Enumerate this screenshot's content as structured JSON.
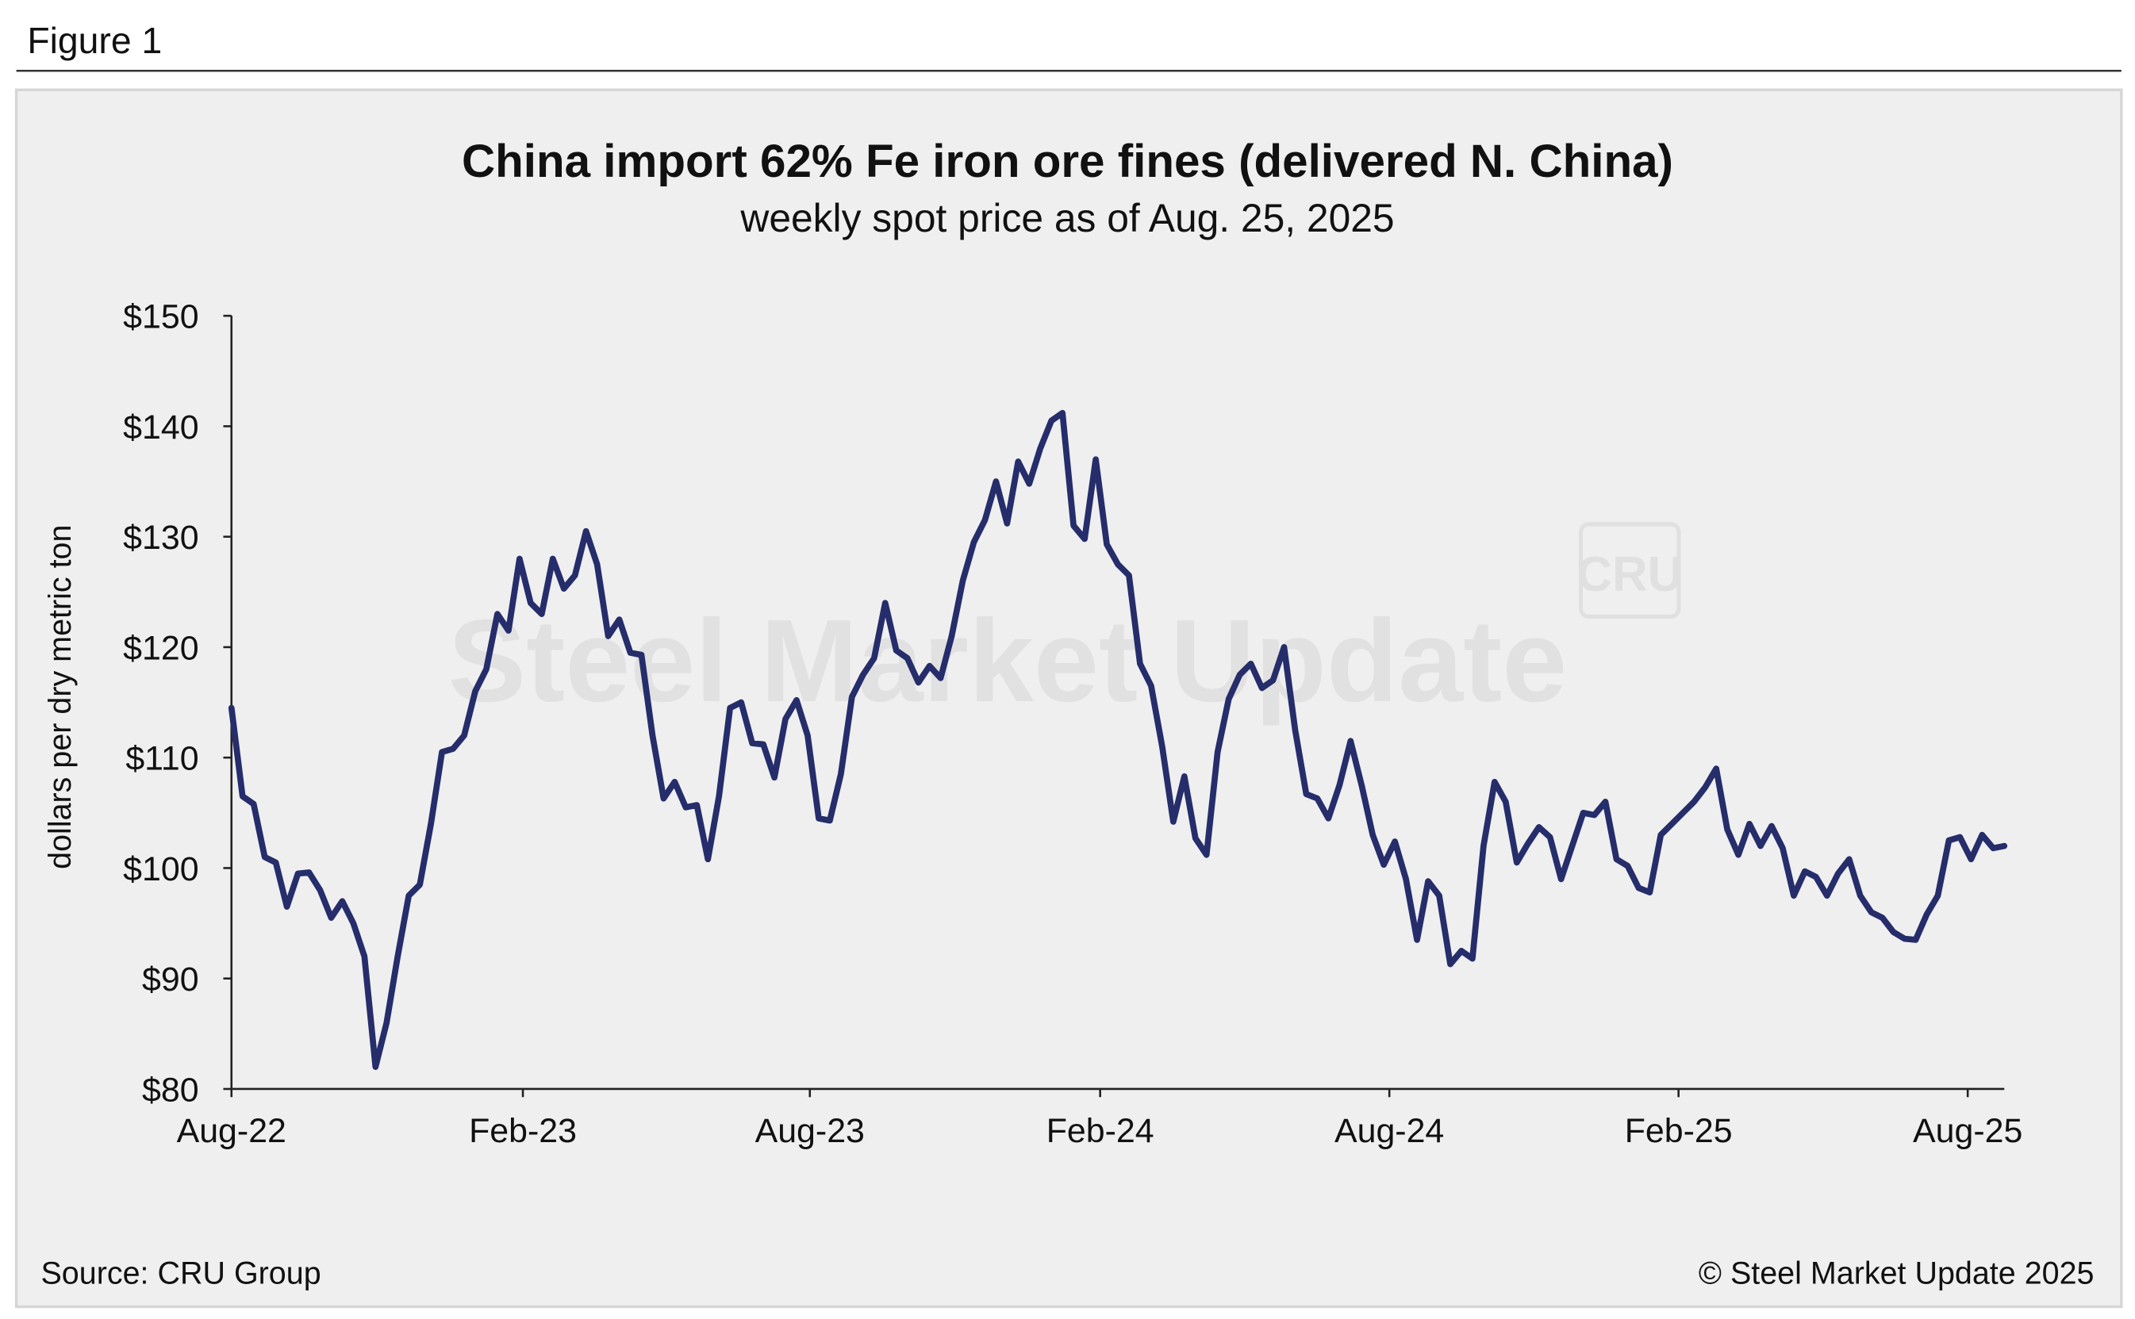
{
  "figure_label": "Figure 1",
  "source": "Source: CRU Group",
  "copyright": "© Steel Market Update 2025",
  "watermark": "Steel Market Update",
  "logo": "CRU",
  "chart_data": {
    "type": "line",
    "title": "China import 62% Fe iron ore fines (delivered N. China)",
    "subtitle": "weekly spot price as of Aug. 25, 2025",
    "y_label": "dollars per dry metric ton",
    "x": [
      0,
      1,
      2,
      3,
      4,
      5,
      6,
      7,
      8,
      9,
      10,
      11,
      12,
      13,
      14,
      15,
      16,
      17,
      18,
      19,
      20,
      21,
      22,
      23,
      24,
      25,
      26,
      27,
      28,
      29,
      30,
      31,
      32,
      33,
      34,
      35,
      36,
      37,
      38,
      39,
      40,
      41,
      42,
      43,
      44,
      45,
      46,
      47,
      48,
      49,
      50,
      51,
      52,
      53,
      54,
      55,
      56,
      57,
      58,
      59,
      60,
      61,
      62,
      63,
      64,
      65,
      66,
      67,
      68,
      69,
      70,
      71,
      72,
      73,
      74,
      75,
      76,
      77,
      78,
      79,
      80,
      81,
      82,
      83,
      84,
      85,
      86,
      87,
      88,
      89,
      90,
      91,
      92,
      93,
      94,
      95,
      96,
      97,
      98,
      99,
      100,
      101,
      102,
      103,
      104,
      105,
      106,
      107,
      108,
      109,
      110,
      111,
      112,
      113,
      114,
      115,
      116,
      117,
      118,
      119,
      120,
      121,
      122,
      123,
      124,
      125,
      126,
      127,
      128,
      129,
      130,
      131,
      132,
      133,
      134,
      135,
      136,
      137,
      138,
      139,
      140,
      141,
      142,
      143,
      144,
      145,
      146,
      147,
      148,
      149,
      150,
      151,
      152,
      153,
      154,
      155,
      156,
      157,
      158,
      159,
      160
    ],
    "series": [
      {
        "name": "62% Fe iron ore fines",
        "color": "#262d6b",
        "values": [
          114.5,
          106.5,
          105.8,
          101,
          100.5,
          96.5,
          99.5,
          99.6,
          98,
          95.5,
          97,
          95,
          92,
          82,
          86,
          92,
          97.5,
          98.5,
          104,
          110.5,
          110.8,
          112,
          116,
          118,
          123,
          121.5,
          128,
          124,
          123,
          128,
          125.3,
          126.5,
          130.5,
          127.5,
          121,
          122.5,
          119.5,
          119.3,
          112,
          106.3,
          107.8,
          105.5,
          105.7,
          100.8,
          106.5,
          114.5,
          115,
          111.3,
          111.2,
          108.2,
          113.5,
          115.2,
          112,
          104.5,
          104.3,
          108.5,
          115.5,
          117.5,
          119,
          124,
          119.7,
          119,
          116.8,
          118.3,
          117.2,
          121,
          126,
          129.5,
          131.5,
          135,
          131.2,
          136.8,
          134.8,
          138,
          140.5,
          141.2,
          131,
          129.8,
          137,
          129.3,
          127.5,
          126.5,
          118.5,
          116.5,
          111,
          104.2,
          108.3,
          102.7,
          101.2,
          110.5,
          115.3,
          117.5,
          118.5,
          116.3,
          117,
          120,
          112.5,
          106.7,
          106.3,
          104.5,
          107.5,
          111.5,
          107.5,
          103,
          100.3,
          102.4,
          99,
          93.5,
          98.8,
          97.5,
          91.3,
          92.5,
          91.8,
          102,
          107.8,
          106,
          100.5,
          102.2,
          103.7,
          102.8,
          99,
          102,
          105,
          104.8,
          106,
          100.8,
          100.2,
          98.2,
          97.8,
          103,
          104,
          105,
          106,
          107.3,
          109,
          103.5,
          101.2,
          104,
          102,
          103.8,
          101.8,
          97.5,
          99.7,
          99.2,
          97.5,
          99.5,
          100.8,
          97.5,
          96,
          95.5,
          94.2,
          93.6,
          93.5,
          95.8,
          97.5,
          102.5,
          102.8,
          100.8,
          103,
          101.8,
          102
        ]
      }
    ],
    "xlim": [
      0,
      160
    ],
    "xticks": [
      {
        "value": 0,
        "label": "Aug-22"
      },
      {
        "value": 26.3,
        "label": "Feb-23"
      },
      {
        "value": 52.2,
        "label": "Aug-23"
      },
      {
        "value": 78.4,
        "label": "Feb-24"
      },
      {
        "value": 104.5,
        "label": "Aug-24"
      },
      {
        "value": 130.6,
        "label": "Feb-25"
      },
      {
        "value": 156.7,
        "label": "Aug-25"
      }
    ],
    "ylim": [
      80,
      150
    ],
    "yticks": [
      {
        "value": 80,
        "label": "$80"
      },
      {
        "value": 90,
        "label": "$90"
      },
      {
        "value": 100,
        "label": "$100"
      },
      {
        "value": 110,
        "label": "$110"
      },
      {
        "value": 120,
        "label": "$120"
      },
      {
        "value": 130,
        "label": "$130"
      },
      {
        "value": 140,
        "label": "$140"
      },
      {
        "value": 150,
        "label": "$150"
      }
    ],
    "grid": false
  }
}
